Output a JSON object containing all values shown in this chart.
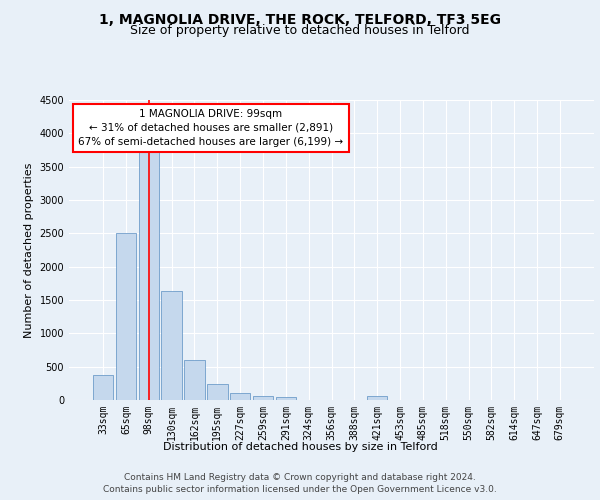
{
  "title1": "1, MAGNOLIA DRIVE, THE ROCK, TELFORD, TF3 5EG",
  "title2": "Size of property relative to detached houses in Telford",
  "xlabel": "Distribution of detached houses by size in Telford",
  "ylabel": "Number of detached properties",
  "categories": [
    "33sqm",
    "65sqm",
    "98sqm",
    "130sqm",
    "162sqm",
    "195sqm",
    "227sqm",
    "259sqm",
    "291sqm",
    "324sqm",
    "356sqm",
    "388sqm",
    "421sqm",
    "453sqm",
    "485sqm",
    "518sqm",
    "550sqm",
    "582sqm",
    "614sqm",
    "647sqm",
    "679sqm"
  ],
  "values": [
    380,
    2500,
    3720,
    1640,
    600,
    240,
    105,
    60,
    45,
    0,
    0,
    0,
    55,
    0,
    0,
    0,
    0,
    0,
    0,
    0,
    0
  ],
  "bar_color": "#c5d8ed",
  "bar_edge_color": "#5a8fc2",
  "annotation_text_line1": "1 MAGNOLIA DRIVE: 99sqm",
  "annotation_text_line2": "← 31% of detached houses are smaller (2,891)",
  "annotation_text_line3": "67% of semi-detached houses are larger (6,199) →",
  "vline_color": "red",
  "vline_x_index": 2,
  "ylim": [
    0,
    4500
  ],
  "yticks": [
    0,
    500,
    1000,
    1500,
    2000,
    2500,
    3000,
    3500,
    4000,
    4500
  ],
  "annotation_box_color": "white",
  "annotation_box_edgecolor": "red",
  "footer1": "Contains HM Land Registry data © Crown copyright and database right 2024.",
  "footer2": "Contains public sector information licensed under the Open Government Licence v3.0.",
  "bg_color": "#e8f0f8",
  "plot_bg_color": "#e8f0f8",
  "grid_color": "white",
  "title_fontsize": 10,
  "subtitle_fontsize": 9,
  "axis_label_fontsize": 8,
  "tick_fontsize": 7,
  "annotation_fontsize": 7.5,
  "footer_fontsize": 6.5
}
